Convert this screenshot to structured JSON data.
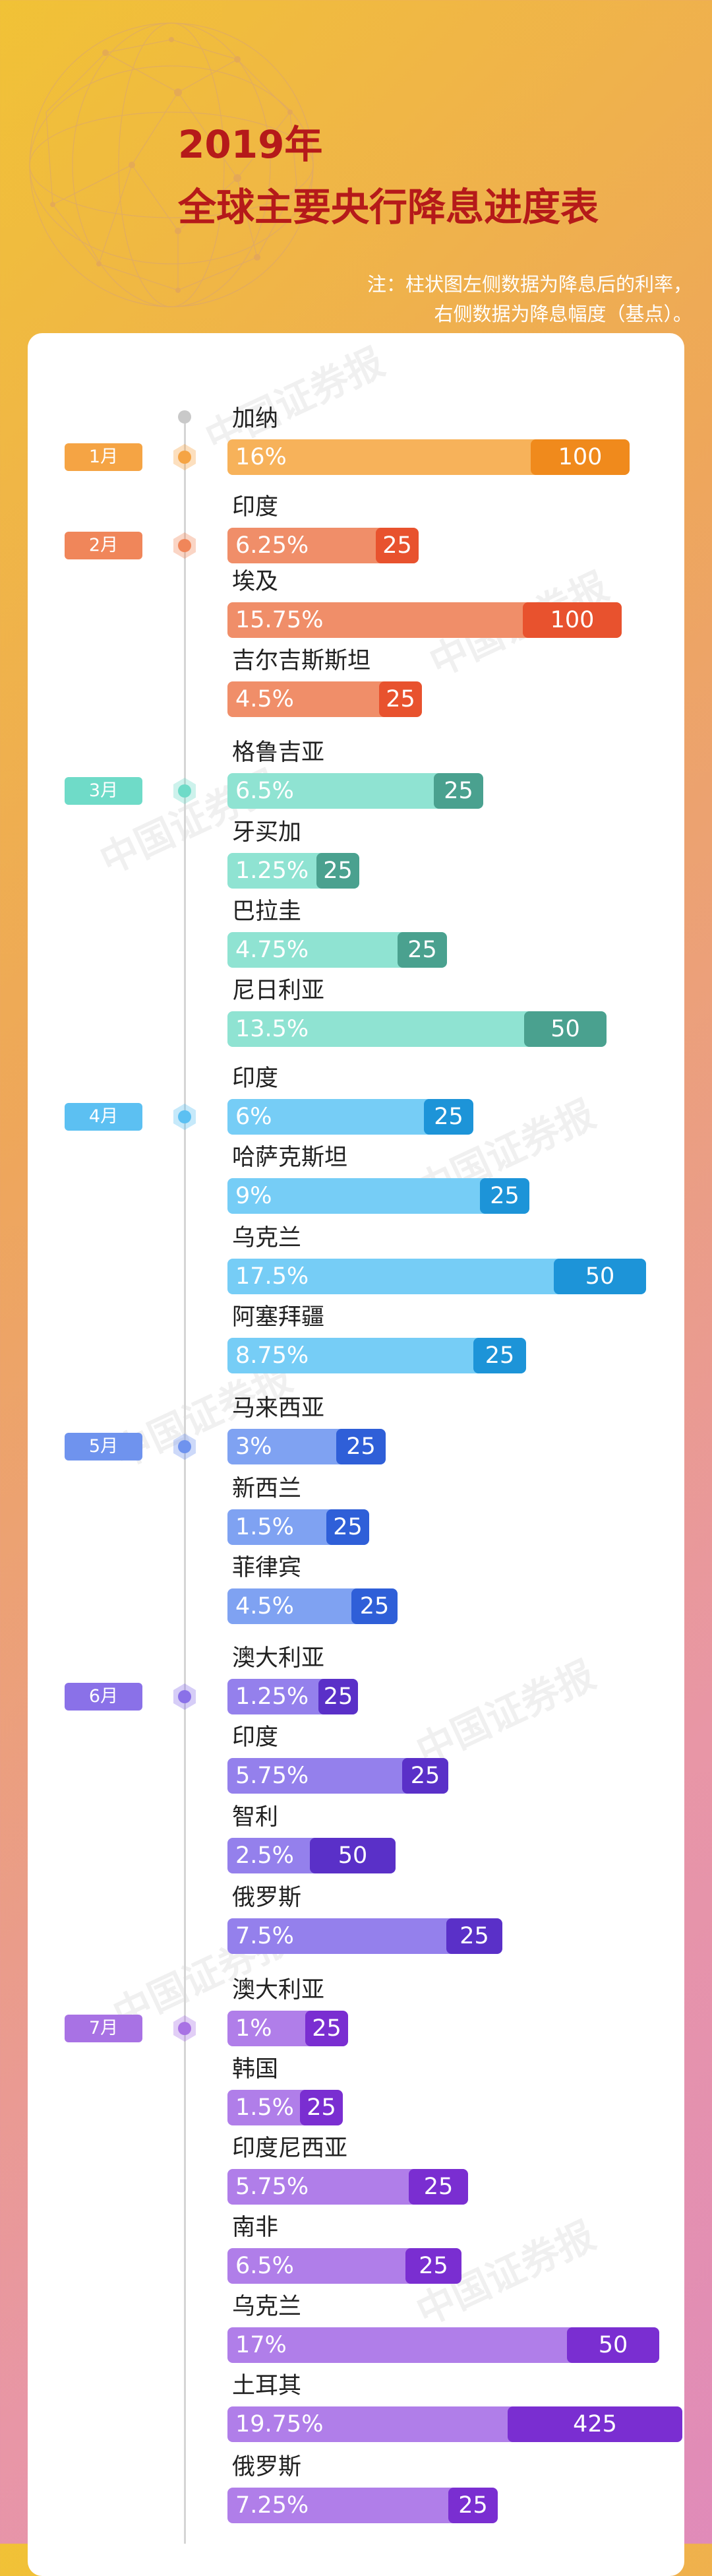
{
  "title_line1": "2019年",
  "title_line2": "全球主要央行降息进度表",
  "note_line1": "注：柱状图左侧数据为降息后的利率，",
  "note_line2": "右侧数据为降息幅度（基点）。",
  "watermark": "中国证券报",
  "chart_data": {
    "type": "bar",
    "orientation": "horizontal",
    "title": "2019年全球主要央行降息进度表",
    "legend": "注：柱状图左侧数据为降息后的利率，右侧数据为降息幅度（基点）。",
    "months": [
      {
        "label": "1月",
        "color": "#f5a444",
        "entries": [
          {
            "country": "加纳",
            "rate": "16%",
            "cut": "100",
            "color": "#f7b25a",
            "cut_color": "#f08a1c"
          }
        ]
      },
      {
        "label": "2月",
        "color": "#f0865a",
        "entries": [
          {
            "country": "印度",
            "rate": "6.25%",
            "cut": "25",
            "color": "#f08e69",
            "cut_color": "#e8522e"
          },
          {
            "country": "埃及",
            "rate": "15.75%",
            "cut": "100",
            "color": "#f08e69",
            "cut_color": "#e8522e"
          },
          {
            "country": "吉尔吉斯斯坦",
            "rate": "4.5%",
            "cut": "25",
            "color": "#f08e69",
            "cut_color": "#e8522e"
          }
        ]
      },
      {
        "label": "3月",
        "color": "#6fdbc8",
        "entries": [
          {
            "country": "格鲁吉亚",
            "rate": "6.5%",
            "cut": "25",
            "color": "#8fe3d2",
            "cut_color": "#4aa18f"
          },
          {
            "country": "牙买加",
            "rate": "1.25%",
            "cut": "25",
            "color": "#8fe3d2",
            "cut_color": "#4aa18f"
          },
          {
            "country": "巴拉圭",
            "rate": "4.75%",
            "cut": "25",
            "color": "#8fe3d2",
            "cut_color": "#4aa18f"
          },
          {
            "country": "尼日利亚",
            "rate": "13.5%",
            "cut": "50",
            "color": "#8fe3d2",
            "cut_color": "#4aa18f"
          }
        ]
      },
      {
        "label": "4月",
        "color": "#5cc0f2",
        "entries": [
          {
            "country": "印度",
            "rate": "6%",
            "cut": "25",
            "color": "#76cdf6",
            "cut_color": "#1d94d8"
          },
          {
            "country": "哈萨克斯坦",
            "rate": "9%",
            "cut": "25",
            "color": "#76cdf6",
            "cut_color": "#1d94d8"
          },
          {
            "country": "乌克兰",
            "rate": "17.5%",
            "cut": "50",
            "color": "#76cdf6",
            "cut_color": "#1d94d8"
          },
          {
            "country": "阿塞拜疆",
            "rate": "8.75%",
            "cut": "25",
            "color": "#76cdf6",
            "cut_color": "#1d94d8"
          }
        ]
      },
      {
        "label": "5月",
        "color": "#6f93ee",
        "entries": [
          {
            "country": "马来西亚",
            "rate": "3%",
            "cut": "25",
            "color": "#7fa2f2",
            "cut_color": "#2f5fd8"
          },
          {
            "country": "新西兰",
            "rate": "1.5%",
            "cut": "25",
            "color": "#7fa2f2",
            "cut_color": "#2f5fd8"
          },
          {
            "country": "菲律宾",
            "rate": "4.5%",
            "cut": "25",
            "color": "#7fa2f2",
            "cut_color": "#2f5fd8"
          }
        ]
      },
      {
        "label": "6月",
        "color": "#8a71e8",
        "entries": [
          {
            "country": "澳大利亚",
            "rate": "1.25%",
            "cut": "25",
            "color": "#9480ec",
            "cut_color": "#5a30c8"
          },
          {
            "country": "印度",
            "rate": "5.75%",
            "cut": "25",
            "color": "#9480ec",
            "cut_color": "#5a30c8"
          },
          {
            "country": "智利",
            "rate": "2.5%",
            "cut": "50",
            "color": "#9480ec",
            "cut_color": "#5a30c8"
          },
          {
            "country": "俄罗斯",
            "rate": "7.5%",
            "cut": "25",
            "color": "#9480ec",
            "cut_color": "#5a30c8"
          }
        ]
      },
      {
        "label": "7月",
        "color": "#a872e4",
        "entries": [
          {
            "country": "澳大利亚",
            "rate": "1%",
            "cut": "25",
            "color": "#b07ee9",
            "cut_color": "#7a2ed1"
          },
          {
            "country": "韩国",
            "rate": "1.5%",
            "cut": "25",
            "color": "#b07ee9",
            "cut_color": "#7a2ed1"
          },
          {
            "country": "印度尼西亚",
            "rate": "5.75%",
            "cut": "25",
            "color": "#b07ee9",
            "cut_color": "#7a2ed1"
          },
          {
            "country": "南非",
            "rate": "6.5%",
            "cut": "25",
            "color": "#b07ee9",
            "cut_color": "#7a2ed1"
          },
          {
            "country": "乌克兰",
            "rate": "17%",
            "cut": "50",
            "color": "#b07ee9",
            "cut_color": "#7a2ed1"
          },
          {
            "country": "土耳其",
            "rate": "19.75%",
            "cut": "425",
            "color": "#b07ee9",
            "cut_color": "#7a2ed1"
          },
          {
            "country": "俄罗斯",
            "rate": "7.25%",
            "cut": "25",
            "color": "#b07ee9",
            "cut_color": "#7a2ed1"
          }
        ]
      }
    ]
  }
}
